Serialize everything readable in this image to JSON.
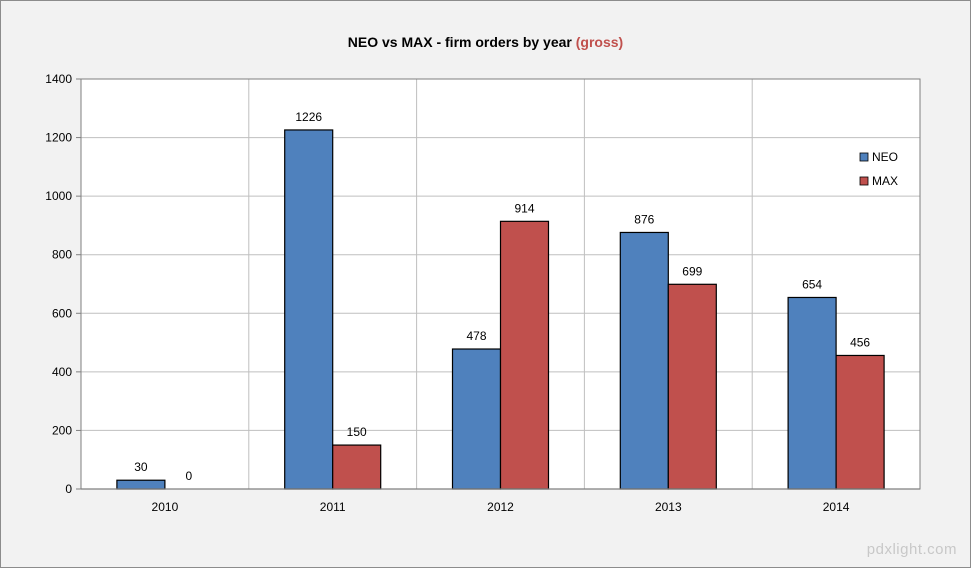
{
  "chart_data": {
    "type": "bar",
    "title": "NEO vs MAX - firm orders by year",
    "title_highlight": "(gross)",
    "categories": [
      "2010",
      "2011",
      "2012",
      "2013",
      "2014"
    ],
    "series": [
      {
        "name": "NEO",
        "color": "#4f81bd",
        "values": [
          30,
          1226,
          478,
          876,
          654
        ]
      },
      {
        "name": "MAX",
        "color": "#c0504d",
        "values": [
          0,
          150,
          914,
          699,
          456
        ]
      }
    ],
    "xlabel": "",
    "ylabel": "",
    "ylim": [
      0,
      1400
    ],
    "yticks": [
      0,
      200,
      400,
      600,
      800,
      1000,
      1200,
      1400
    ],
    "grid": true,
    "legend_position": "right",
    "plot_background": "#ffffff",
    "page_background": "#f2f2f2"
  },
  "watermark": "pdxlight.com"
}
